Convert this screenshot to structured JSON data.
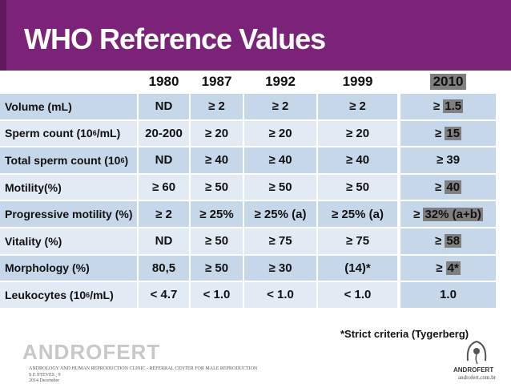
{
  "slide": {
    "title": "WHO Reference Values",
    "note": "*Strict criteria (Tygerberg)"
  },
  "table": {
    "years": [
      "1980",
      "1987",
      "1992",
      "1999"
    ],
    "year_2010": "2010",
    "rows": [
      {
        "label_main": "Volume (mL)",
        "label_sup": "",
        "label_end": "",
        "values": [
          "ND",
          "≥ 2",
          "≥ 2",
          "≥ 2"
        ],
        "v2010_prefix": "≥ ",
        "v2010": "1.5"
      },
      {
        "label_main": "Sperm count (10",
        "label_sup": "6",
        "label_end": "/mL)",
        "values": [
          "20-200",
          "≥ 20",
          "≥ 20",
          "≥ 20"
        ],
        "v2010_prefix": "≥ ",
        "v2010": "15"
      },
      {
        "label_main": "Total sperm count (10",
        "label_sup": "6",
        "label_end": ")",
        "values": [
          "ND",
          "≥ 40",
          "≥ 40",
          "≥ 40"
        ],
        "v2010_prefix": "≥ ",
        "v2010": "39"
      },
      {
        "label_main": "Motility(%)",
        "label_sup": "",
        "label_end": "",
        "values": [
          "≥ 60",
          "≥ 50",
          "≥ 50",
          "≥ 50"
        ],
        "v2010_prefix": "≥ ",
        "v2010": "40"
      },
      {
        "label_main": "Progressive motility (%)",
        "label_sup": "",
        "label_end": "",
        "values": [
          "≥ 2",
          "≥ 25%",
          "≥ 25% (a)",
          "≥ 25% (a)"
        ],
        "v2010_prefix": "≥ ",
        "v2010": "32% (a+b)"
      },
      {
        "label_main": "Vitality (%)",
        "label_sup": "",
        "label_end": "",
        "values": [
          "ND",
          "≥ 50",
          "≥ 75",
          "≥ 75"
        ],
        "v2010_prefix": "≥ ",
        "v2010": "58"
      },
      {
        "label_main": "Morphology (%)",
        "label_sup": "",
        "label_end": "",
        "values": [
          "80,5",
          "≥ 50",
          "≥ 30",
          "(14)*"
        ],
        "v2010_prefix": "≥ ",
        "v2010": "4*"
      },
      {
        "label_main": "Leukocytes (10",
        "label_sup": "6",
        "label_end": "/mL)",
        "values": [
          "< 4.7",
          "< 1.0",
          "< 1.0",
          "< 1.0"
        ],
        "v2010_prefix": "",
        "v2010": "1.0"
      }
    ]
  },
  "footer": {
    "watermark": "ANDROFERT",
    "line1": "ANDROLOGY AND HUMAN REPRODUCTION CLINIC - REFERRAL CENTER FOR MALE REPRODUCTION",
    "line2": "S E STEVES , 9",
    "line3": "2014 December",
    "brand": "ANDROFERT",
    "site": "androfert.com.br"
  },
  "colors": {
    "banner": "#7a2378",
    "row_dark": "#c7d7ea",
    "row_light": "#e2eaf4",
    "highlight": "#7f7f7f"
  },
  "icons": [
    "sperm-logo-icon"
  ]
}
